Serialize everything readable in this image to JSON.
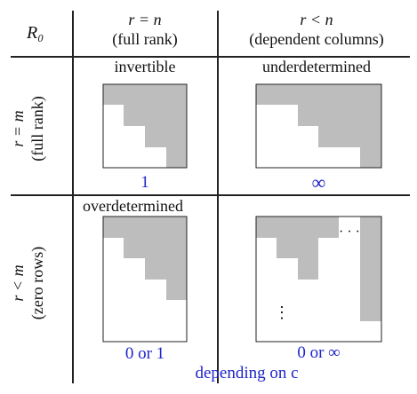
{
  "corner_label": "R₀",
  "columns": [
    {
      "condition": "r = n",
      "description": "(full rank)"
    },
    {
      "condition": "r < n",
      "description": "(dependent columns)"
    }
  ],
  "rows": [
    {
      "condition": "r = m",
      "description": "(full rank)"
    },
    {
      "condition": "r < m",
      "description": "(zero rows)"
    }
  ],
  "cells": {
    "top_left": {
      "label": "invertible",
      "solutions": "1"
    },
    "top_right": {
      "label": "underdetermined",
      "solutions": "∞"
    },
    "bottom_left": {
      "label": "overdetermined",
      "solutions": "0 or 1"
    },
    "bottom_right": {
      "label": "",
      "solutions": "0 or ∞"
    }
  },
  "ellipsis_horizontal": "· · ·",
  "ellipsis_vertical": "⋮",
  "footnote": "depending on c",
  "colors": {
    "shade": "#bdbdbd",
    "answer_text": "#1f25c8",
    "border": "#222222"
  }
}
